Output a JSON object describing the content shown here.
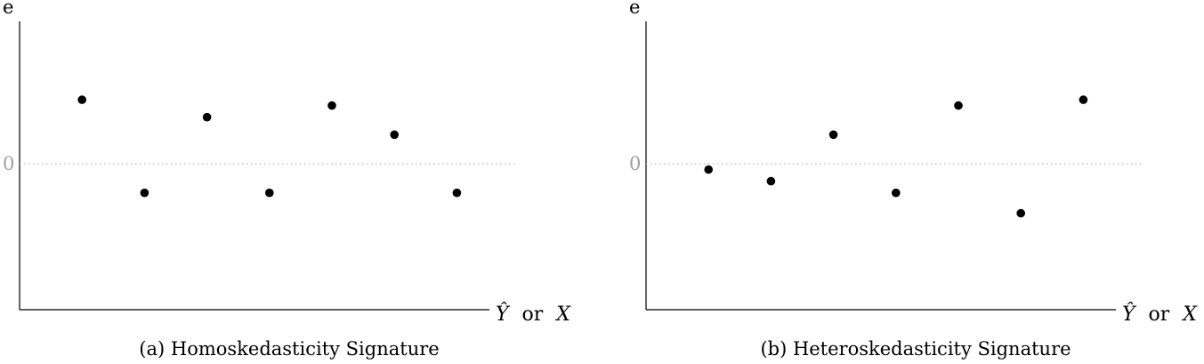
{
  "chart_data": [
    {
      "type": "scatter",
      "caption": "(a) Homoskedasticity Signature",
      "ylabel": "e",
      "xlabel": {
        "y_hat": "Ŷ",
        "or": "or",
        "x": "X"
      },
      "zero_label": "0",
      "ylim": [
        -5,
        5
      ],
      "xlim": [
        0,
        8.3
      ],
      "grid": false,
      "zero_line": "dotted",
      "points": [
        {
          "x": 1,
          "y": 2.2
        },
        {
          "x": 2,
          "y": -1.0
        },
        {
          "x": 3,
          "y": 1.6
        },
        {
          "x": 4,
          "y": -1.0
        },
        {
          "x": 5,
          "y": 2.0
        },
        {
          "x": 6,
          "y": 1.0
        },
        {
          "x": 7,
          "y": -1.0
        }
      ]
    },
    {
      "type": "scatter",
      "caption": "(b) Heteroskedasticity Signature",
      "ylabel": "e",
      "xlabel": {
        "y_hat": "Ŷ",
        "or": "or",
        "x": "X"
      },
      "zero_label": "0",
      "ylim": [
        -5,
        5
      ],
      "xlim": [
        0,
        8.3
      ],
      "grid": false,
      "zero_line": "dotted",
      "points": [
        {
          "x": 1,
          "y": -0.2
        },
        {
          "x": 2,
          "y": -0.6
        },
        {
          "x": 3,
          "y": 1.0
        },
        {
          "x": 4,
          "y": -1.0
        },
        {
          "x": 5,
          "y": 2.0
        },
        {
          "x": 6,
          "y": -1.7
        },
        {
          "x": 7,
          "y": 2.2
        }
      ]
    }
  ]
}
